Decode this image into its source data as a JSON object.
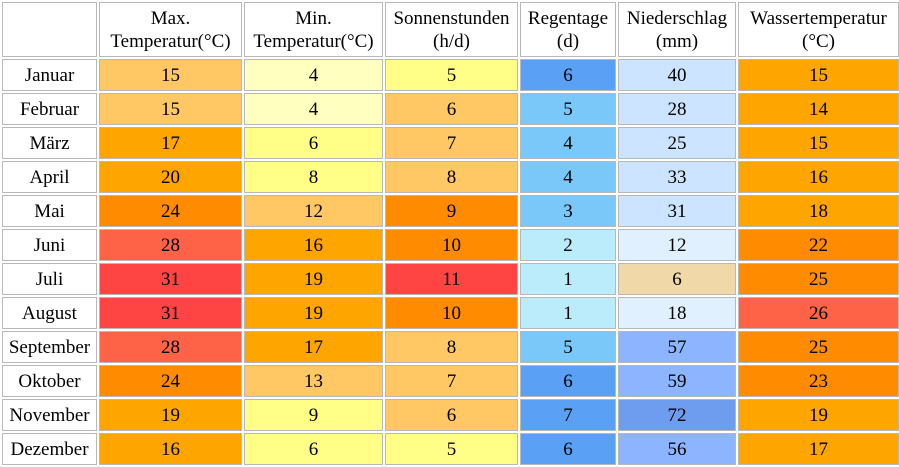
{
  "table": {
    "headers": [
      {
        "line1": "Max.",
        "line2": "Temperatur(°C)"
      },
      {
        "line1": "Min.",
        "line2": "Temperatur(°C)"
      },
      {
        "line1": "Sonnenstunden",
        "line2": "(h/d)"
      },
      {
        "line1": "Regentage",
        "line2": "(d)"
      },
      {
        "line1": "Niederschlag",
        "line2": "(mm)"
      },
      {
        "line1": "Wassertemperatur",
        "line2": "(°C)"
      }
    ],
    "rows": [
      {
        "month": "Januar",
        "max": "15",
        "min": "4",
        "sun": "5",
        "rain_days": "6",
        "precip": "40",
        "water": "15"
      },
      {
        "month": "Februar",
        "max": "15",
        "min": "4",
        "sun": "6",
        "rain_days": "5",
        "precip": "28",
        "water": "14"
      },
      {
        "month": "März",
        "max": "17",
        "min": "6",
        "sun": "7",
        "rain_days": "4",
        "precip": "25",
        "water": "15"
      },
      {
        "month": "April",
        "max": "20",
        "min": "8",
        "sun": "8",
        "rain_days": "4",
        "precip": "33",
        "water": "16"
      },
      {
        "month": "Mai",
        "max": "24",
        "min": "12",
        "sun": "9",
        "rain_days": "3",
        "precip": "31",
        "water": "18"
      },
      {
        "month": "Juni",
        "max": "28",
        "min": "16",
        "sun": "10",
        "rain_days": "2",
        "precip": "12",
        "water": "22"
      },
      {
        "month": "Juli",
        "max": "31",
        "min": "19",
        "sun": "11",
        "rain_days": "1",
        "precip": "6",
        "water": "25"
      },
      {
        "month": "August",
        "max": "31",
        "min": "19",
        "sun": "10",
        "rain_days": "1",
        "precip": "18",
        "water": "26"
      },
      {
        "month": "September",
        "max": "28",
        "min": "17",
        "sun": "8",
        "rain_days": "5",
        "precip": "57",
        "water": "25"
      },
      {
        "month": "Oktober",
        "max": "24",
        "min": "13",
        "sun": "7",
        "rain_days": "6",
        "precip": "59",
        "water": "23"
      },
      {
        "month": "November",
        "max": "19",
        "min": "9",
        "sun": "6",
        "rain_days": "7",
        "precip": "72",
        "water": "19"
      },
      {
        "month": "Dezember",
        "max": "16",
        "min": "6",
        "sun": "5",
        "rain_days": "6",
        "precip": "56",
        "water": "17"
      }
    ]
  },
  "colors": {
    "max": [
      "#ffc864",
      "#ffc864",
      "#ffa500",
      "#ffa500",
      "#ff8c00",
      "#ff6347",
      "#ff4444",
      "#ff4444",
      "#ff6347",
      "#ff8c00",
      "#ffa500",
      "#ffa500"
    ],
    "min": [
      "#ffffc0",
      "#ffffc0",
      "#ffff88",
      "#ffff88",
      "#ffc864",
      "#ffa500",
      "#ffa500",
      "#ffa500",
      "#ffa500",
      "#ffc864",
      "#ffff88",
      "#ffff88"
    ],
    "sun": [
      "#ffff88",
      "#ffc864",
      "#ffc864",
      "#ffc864",
      "#ff8c00",
      "#ff8c00",
      "#ff4444",
      "#ff8c00",
      "#ffc864",
      "#ffc864",
      "#ffc864",
      "#ffff88"
    ],
    "rain_days": [
      "#5aa0f5",
      "#7ac8fa",
      "#7ac8fa",
      "#7ac8fa",
      "#7ac8fa",
      "#bbecfc",
      "#bbecfc",
      "#bbecfc",
      "#7ac8fa",
      "#5aa0f5",
      "#5aa0f5",
      "#5aa0f5"
    ],
    "precip": [
      "#cce4ff",
      "#cce4ff",
      "#cce4ff",
      "#cce4ff",
      "#cce4ff",
      "#e0f0ff",
      "#f0d8a8",
      "#e0f0ff",
      "#8cb4ff",
      "#8cb4ff",
      "#6e9cef",
      "#8cb4ff"
    ],
    "water": [
      "#ffa500",
      "#ffa500",
      "#ffa500",
      "#ffa500",
      "#ffa500",
      "#ff8c00",
      "#ff8c00",
      "#ff6347",
      "#ff8c00",
      "#ff8c00",
      "#ffa500",
      "#ffa500"
    ]
  }
}
